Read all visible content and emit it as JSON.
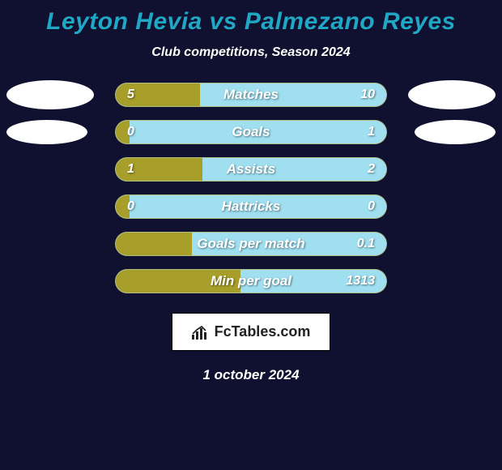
{
  "background_color": "#101030",
  "title": "Leyton Hevia vs Palmezano Reyes",
  "title_color": "#20a7c5",
  "subtitle": "Club competitions, Season 2024",
  "subtitle_color": "#ffffff",
  "left_fill_color": "#a89e2a",
  "right_fill_color": "#9fdff0",
  "track_background": "#9fdff0",
  "avatar_color": "#ffffff",
  "watermark_text": "FcTables.com",
  "date_text": "1 october 2024",
  "date_color": "#ffffff",
  "stats": [
    {
      "label": "Matches",
      "left_val": "5",
      "right_val": "10",
      "left_pct": 31,
      "show_left_avatar": true,
      "show_right_avatar": true,
      "avatar_size": "size1"
    },
    {
      "label": "Goals",
      "left_val": "0",
      "right_val": "1",
      "left_pct": 5,
      "show_left_avatar": true,
      "show_right_avatar": true,
      "avatar_size": "size2"
    },
    {
      "label": "Assists",
      "left_val": "1",
      "right_val": "2",
      "left_pct": 32,
      "show_left_avatar": false,
      "show_right_avatar": false,
      "avatar_size": "size2"
    },
    {
      "label": "Hattricks",
      "left_val": "0",
      "right_val": "0",
      "left_pct": 5,
      "show_left_avatar": false,
      "show_right_avatar": false,
      "avatar_size": "size2"
    },
    {
      "label": "Goals per match",
      "left_val": "",
      "right_val": "0.1",
      "left_pct": 28,
      "show_left_avatar": false,
      "show_right_avatar": false,
      "avatar_size": "size2"
    },
    {
      "label": "Min per goal",
      "left_val": "",
      "right_val": "1313",
      "left_pct": 46,
      "show_left_avatar": false,
      "show_right_avatar": false,
      "avatar_size": "size2"
    }
  ]
}
